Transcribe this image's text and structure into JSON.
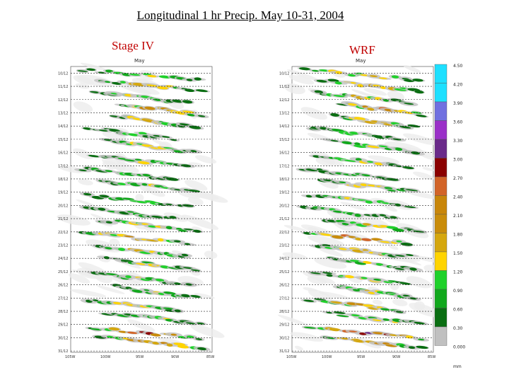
{
  "header": {
    "title": "Longitudinal 1 hr  Precip.   May 10-31, 2004"
  },
  "chart_data": {
    "type": "heatmap",
    "title": "Longitudinal 1 hr  Precip.   May 10-31, 2004",
    "units": "mm",
    "colorbar": {
      "values": [
        "0.000",
        "0.30",
        "0.60",
        "0.90",
        "1.20",
        "1.50",
        "1.80",
        "2.10",
        "2.40",
        "2.70",
        "3.00",
        "3.30",
        "3.60",
        "3.90",
        "4.20",
        "4.50"
      ],
      "colors": [
        "#f4f4f4",
        "#c0c0c0",
        "#0a6e12",
        "#11a81c",
        "#1fd12a",
        "#ffd400",
        "#d5a70e",
        "#c98c0a",
        "#c8860a",
        "#d26428",
        "#8a0000",
        "#6a2a8a",
        "#9a30c8",
        "#7070e0",
        "#1ee0ff",
        "#1ee0ff"
      ]
    },
    "panels": [
      {
        "name": "Stage IV",
        "month_label": "May",
        "y_ticks": [
          "10/12",
          "11/12",
          "12/12",
          "13/12",
          "14/12",
          "15/12",
          "16/12",
          "17/12",
          "18/12",
          "19/12",
          "20/12",
          "21/12",
          "22/12",
          "23/12",
          "24/12",
          "25/12",
          "26/12",
          "27/12",
          "28/12",
          "29/12",
          "30/12",
          "31/12"
        ],
        "x_ticks": [
          "105W",
          "100W",
          "95W",
          "90W",
          "85W"
        ]
      },
      {
        "name": "WRF",
        "month_label": "May",
        "y_ticks": [
          "10/12",
          "11/12",
          "12/12",
          "13/12",
          "14/12",
          "15/12",
          "16/12",
          "17/12",
          "18/12",
          "19/12",
          "20/12",
          "21/12",
          "22/12",
          "23/12",
          "24/12",
          "25/12",
          "26/12",
          "27/12",
          "28/12",
          "29/12",
          "30/12",
          "31/12"
        ],
        "x_ticks": [
          "105W",
          "100W",
          "95W",
          "90W",
          "85W"
        ]
      }
    ],
    "events": [
      {
        "day": 10.6,
        "lon_start": -104,
        "lon_end": -86,
        "intensity": 1.2
      },
      {
        "day": 11.4,
        "lon_start": -101,
        "lon_end": -86,
        "intensity": 1.5
      },
      {
        "day": 12.3,
        "lon_start": -102,
        "lon_end": -88,
        "intensity": 1.3
      },
      {
        "day": 13.2,
        "lon_start": -98,
        "lon_end": -86,
        "intensity": 2.0
      },
      {
        "day": 14.1,
        "lon_start": -99,
        "lon_end": -87,
        "intensity": 1.4
      },
      {
        "day": 15.0,
        "lon_start": -103,
        "lon_end": -90,
        "intensity": 1.0
      },
      {
        "day": 16.0,
        "lon_start": -100,
        "lon_end": -87,
        "intensity": 1.3
      },
      {
        "day": 17.1,
        "lon_start": -102,
        "lon_end": -88,
        "intensity": 1.2
      },
      {
        "day": 18.1,
        "lon_start": -104,
        "lon_end": -90,
        "intensity": 1.0
      },
      {
        "day": 19.0,
        "lon_start": -101,
        "lon_end": -87,
        "intensity": 1.2
      },
      {
        "day": 20.1,
        "lon_start": -103,
        "lon_end": -88,
        "intensity": 1.1
      },
      {
        "day": 21.0,
        "lon_start": -104,
        "lon_end": -90,
        "intensity": 0.9
      },
      {
        "day": 22.0,
        "lon_start": -101,
        "lon_end": -86,
        "intensity": 1.3
      },
      {
        "day": 22.9,
        "lon_start": -104,
        "lon_end": -88,
        "intensity": 1.9
      },
      {
        "day": 23.9,
        "lon_start": -102,
        "lon_end": -88,
        "intensity": 1.4
      },
      {
        "day": 24.9,
        "lon_start": -100,
        "lon_end": -87,
        "intensity": 1.2
      },
      {
        "day": 26.0,
        "lon_start": -102,
        "lon_end": -88,
        "intensity": 1.2
      },
      {
        "day": 27.0,
        "lon_start": -99,
        "lon_end": -87,
        "intensity": 1.1
      },
      {
        "day": 28.0,
        "lon_start": -103,
        "lon_end": -89,
        "intensity": 1.3
      },
      {
        "day": 29.0,
        "lon_start": -100,
        "lon_end": -86,
        "intensity": 1.2
      },
      {
        "day": 30.1,
        "lon_start": -103,
        "lon_end": -86,
        "intensity": 2.2
      },
      {
        "day": 30.8,
        "lon_start": -101,
        "lon_end": -86,
        "intensity": 2.0
      }
    ]
  }
}
